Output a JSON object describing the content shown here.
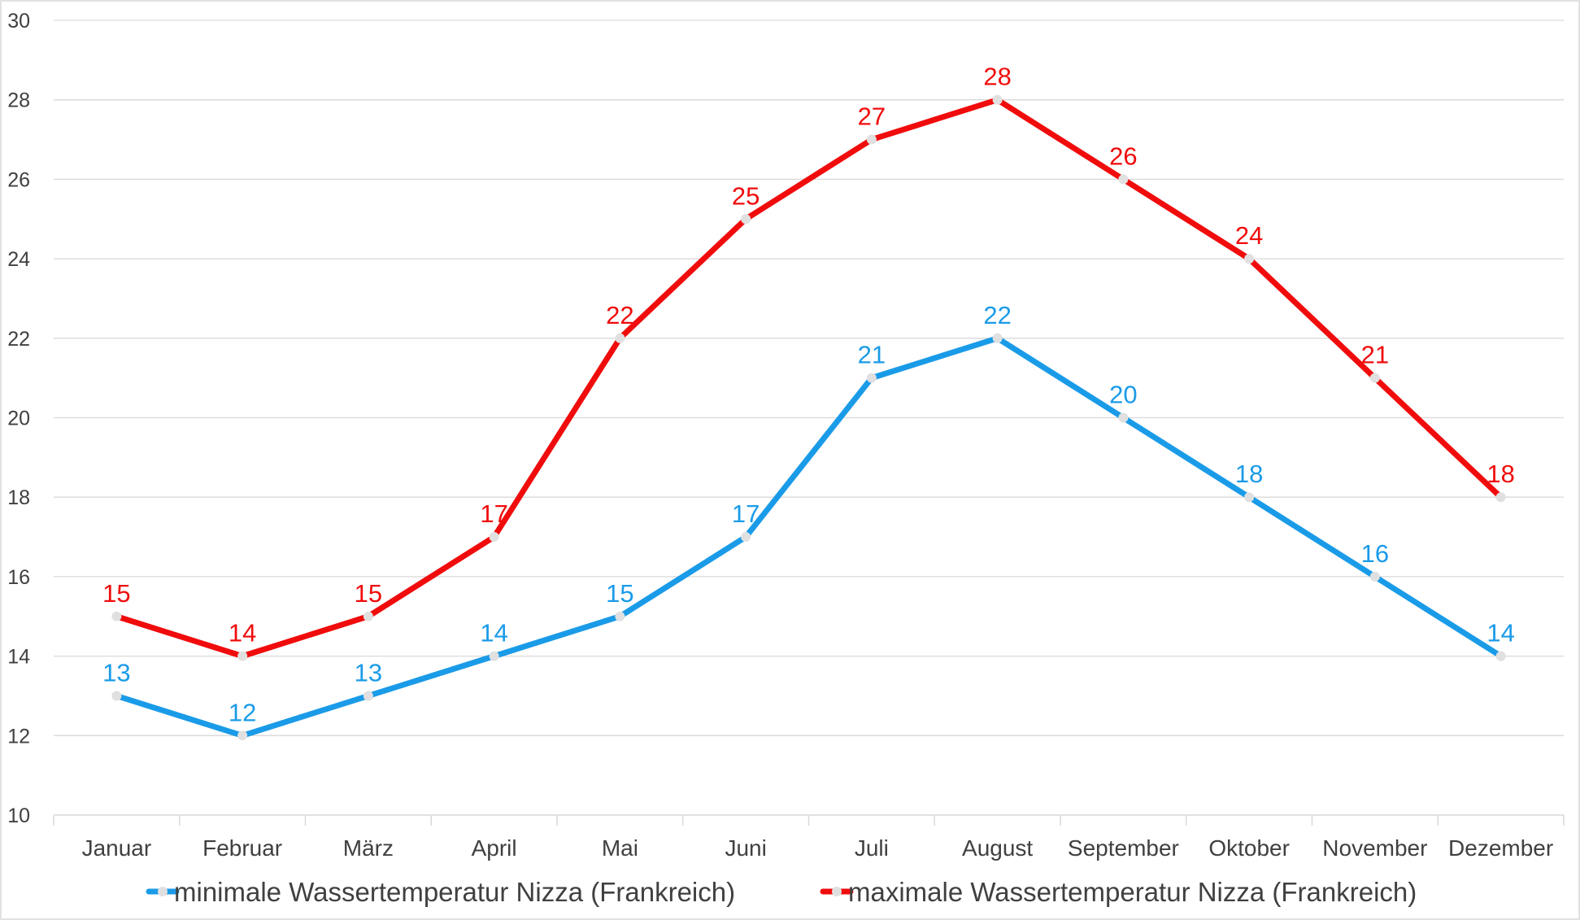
{
  "chart_data": {
    "type": "line",
    "categories": [
      "Januar",
      "Februar",
      "März",
      "April",
      "Mai",
      "Juni",
      "Juli",
      "August",
      "September",
      "Oktober",
      "November",
      "Dezember"
    ],
    "series": [
      {
        "name": "minimale Wassertemperatur Nizza (Frankreich)",
        "values": [
          13,
          12,
          13,
          14,
          15,
          17,
          21,
          22,
          20,
          18,
          16,
          14
        ],
        "color": "#1a9be8"
      },
      {
        "name": "maximale Wassertemperatur Nizza (Frankreich)",
        "values": [
          15,
          14,
          15,
          17,
          22,
          25,
          27,
          28,
          26,
          24,
          21,
          18
        ],
        "color": "#f00c0c"
      }
    ],
    "ylim": [
      10,
      30
    ],
    "yticks": [
      10,
      12,
      14,
      16,
      18,
      20,
      22,
      24,
      26,
      28,
      30
    ],
    "grid": true,
    "legend_position": "bottom",
    "data_labels": true,
    "marker_color": "#e0e0e0"
  }
}
